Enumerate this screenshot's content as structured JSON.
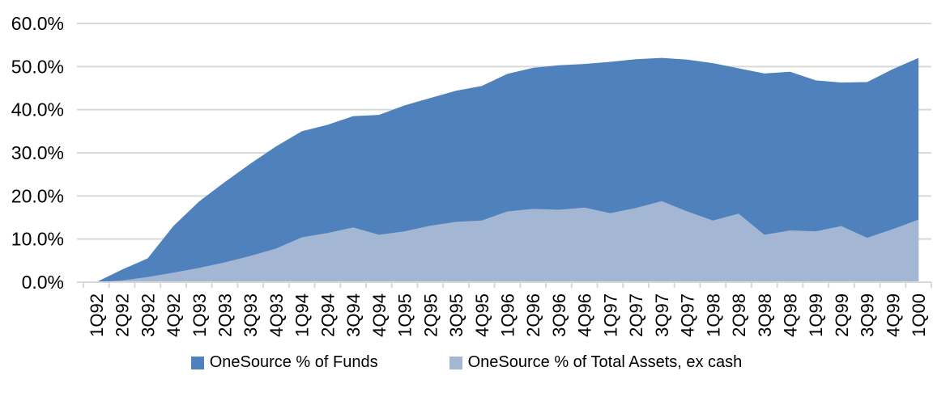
{
  "chart_data": {
    "type": "area",
    "title": "",
    "xlabel": "",
    "ylabel": "",
    "categories": [
      "1Q92",
      "2Q92",
      "3Q92",
      "4Q92",
      "1Q93",
      "2Q93",
      "3Q93",
      "4Q93",
      "1Q94",
      "2Q94",
      "3Q94",
      "4Q94",
      "1Q95",
      "2Q95",
      "3Q95",
      "4Q95",
      "1Q96",
      "2Q96",
      "3Q96",
      "4Q96",
      "1Q97",
      "2Q97",
      "3Q97",
      "4Q97",
      "1Q98",
      "2Q98",
      "3Q98",
      "4Q98",
      "1Q99",
      "2Q99",
      "3Q99",
      "4Q99",
      "1Q00"
    ],
    "series": [
      {
        "name": "OneSource % of Funds",
        "color": "#4f81bd",
        "values": [
          0.0,
          2.9,
          5.5,
          13.0,
          18.7,
          23.2,
          27.5,
          31.5,
          35.0,
          36.5,
          38.5,
          38.8,
          41.0,
          42.7,
          44.4,
          45.5,
          48.3,
          49.7,
          50.3,
          50.6,
          51.1,
          51.7,
          52.0,
          51.6,
          50.8,
          49.6,
          48.4,
          48.8,
          46.8,
          46.3,
          46.4,
          49.4,
          52.0
        ]
      },
      {
        "name": "OneSource % of Total Assets, ex cash",
        "color": "#a3b6d3",
        "values": [
          0.0,
          0.4,
          1.2,
          2.2,
          3.3,
          4.6,
          6.1,
          7.8,
          10.4,
          11.4,
          12.7,
          11.0,
          11.8,
          13.1,
          14.0,
          14.3,
          16.4,
          17.0,
          16.8,
          17.3,
          16.0,
          17.2,
          18.8,
          16.4,
          14.3,
          15.9,
          11.0,
          12.0,
          11.8,
          13.0,
          10.3,
          12.3,
          14.5
        ]
      }
    ],
    "ylim": [
      0,
      60
    ],
    "ytick_step": 10,
    "ytick_labels": [
      "0.0%",
      "10.0%",
      "20.0%",
      "30.0%",
      "40.0%",
      "50.0%",
      "60.0%"
    ],
    "grid": true,
    "areas_overlap": true,
    "legend_position": "bottom"
  },
  "colors": {
    "gridline": "#d9d9d9",
    "axis": "#d9d9d9",
    "text": "#000000",
    "background": "#ffffff"
  }
}
